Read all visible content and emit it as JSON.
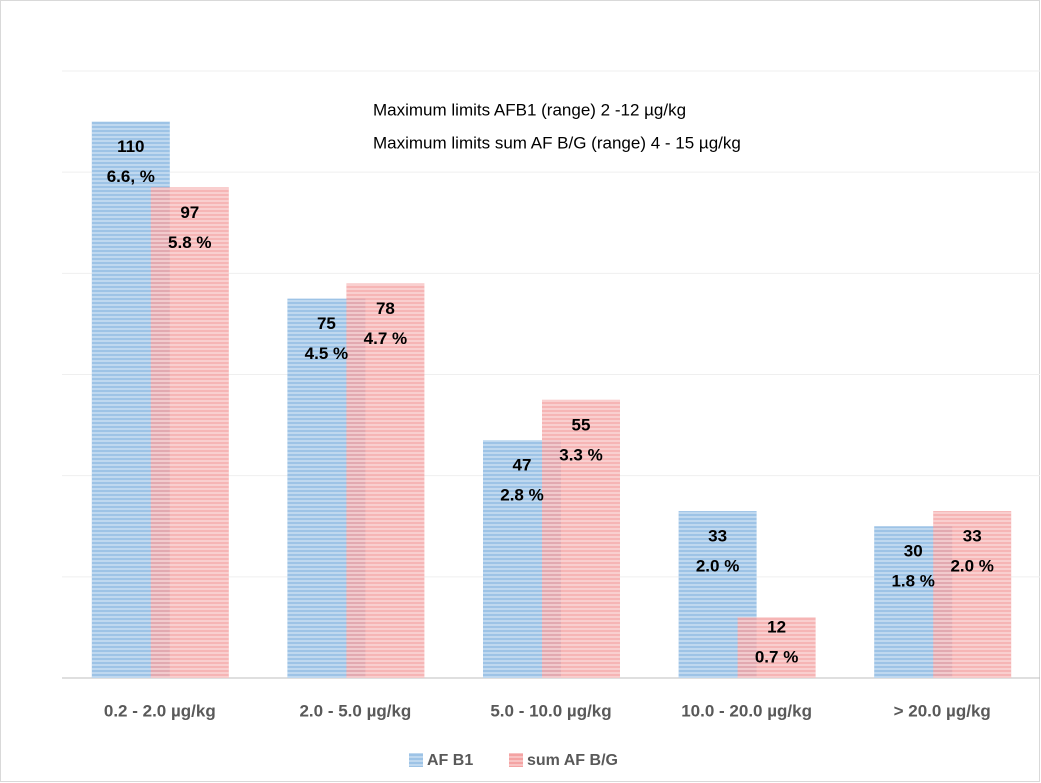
{
  "chart_data": {
    "type": "bar",
    "annotations": [
      "Maximum limits AFB1   (range)  2 -12  µg/kg",
      "Maximum limits sum AF B/G (range)    4 - 15  µg/kg"
    ],
    "categories": [
      "0.2 - 2.0  µg/kg",
      "2.0 - 5.0  µg/kg",
      "5.0 - 10.0 µg/kg",
      "10.0 - 20.0  µg/kg",
      "> 20.0  µg/kg"
    ],
    "series": [
      {
        "name": "AF B1",
        "color": "#9dc3e6",
        "values": [
          110,
          75,
          47,
          33,
          30
        ],
        "percent_labels": [
          "6.6, %",
          "4.5 %",
          "2.8 %",
          "2.0 %",
          "1.8 %"
        ]
      },
      {
        "name": "sum AF B/G",
        "color": "#f4a3a3",
        "values": [
          97,
          78,
          55,
          12,
          33
        ],
        "percent_labels": [
          "5.8 %",
          "4.7 %",
          "3.3 %",
          "0.7 %",
          "2.0 %"
        ]
      }
    ],
    "ylim": [
      0,
      120
    ],
    "yticks": [
      0,
      20,
      40,
      60,
      80,
      100,
      120
    ],
    "grid": true,
    "legend": "bottom"
  }
}
